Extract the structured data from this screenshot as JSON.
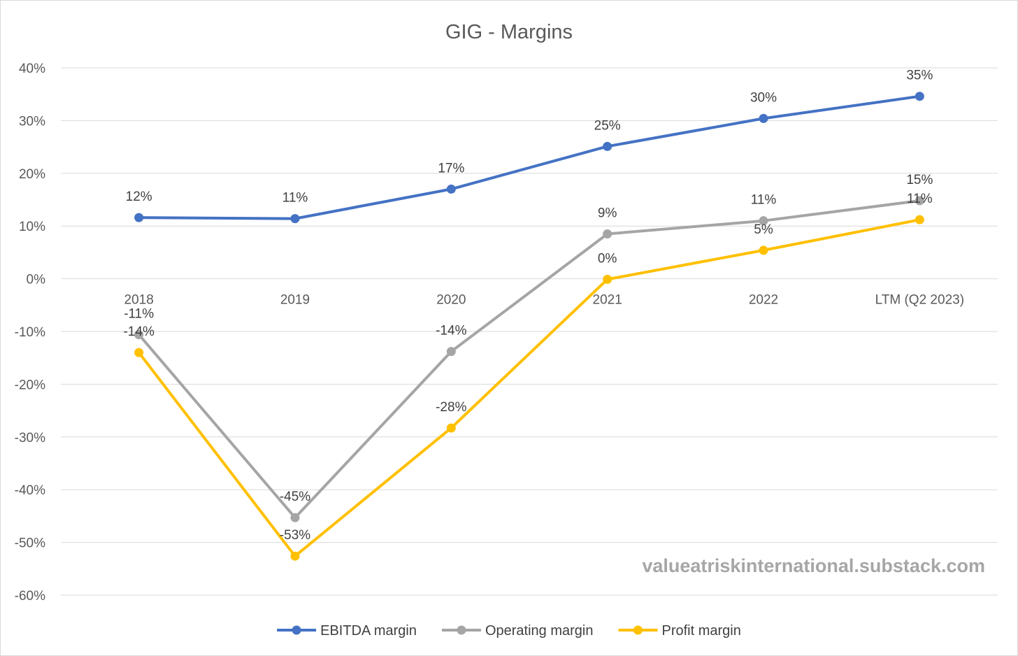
{
  "chart_data": {
    "type": "line",
    "title": "GIG - Margins",
    "categories": [
      "2018",
      "2019",
      "2020",
      "2021",
      "2022",
      "LTM (Q2 2023)"
    ],
    "ylim": [
      -0.6,
      0.4
    ],
    "y_ticks": [
      0.4,
      0.3,
      0.2,
      0.1,
      0,
      -0.1,
      -0.2,
      -0.3,
      -0.4,
      -0.5,
      -0.6
    ],
    "y_tick_labels": [
      "40%",
      "30%",
      "20%",
      "10%",
      "0%",
      "-10%",
      "-20%",
      "-30%",
      "-40%",
      "-50%",
      "-60%"
    ],
    "grid": true,
    "legend_position": "bottom",
    "series": [
      {
        "name": "EBITDA margin",
        "color": "#4472c4",
        "values": [
          0.116,
          0.114,
          0.17,
          0.251,
          0.304,
          0.346
        ],
        "labels": [
          "12%",
          "11%",
          "17%",
          "25%",
          "30%",
          "35%"
        ]
      },
      {
        "name": "Operating margin",
        "color": "#a5a5a5",
        "values": [
          -0.106,
          -0.453,
          -0.138,
          0.085,
          0.11,
          0.148
        ],
        "labels": [
          "-11%",
          "-45%",
          "-14%",
          "9%",
          "11%",
          "15%"
        ]
      },
      {
        "name": "Profit margin",
        "color": "#ffc000",
        "values": [
          -0.14,
          -0.526,
          -0.283,
          -0.001,
          0.054,
          0.112
        ],
        "labels": [
          "-14%",
          "-53%",
          "-28%",
          "0%",
          "5%",
          "11%"
        ]
      }
    ],
    "watermark": "valueatriskinternational.substack.com"
  }
}
